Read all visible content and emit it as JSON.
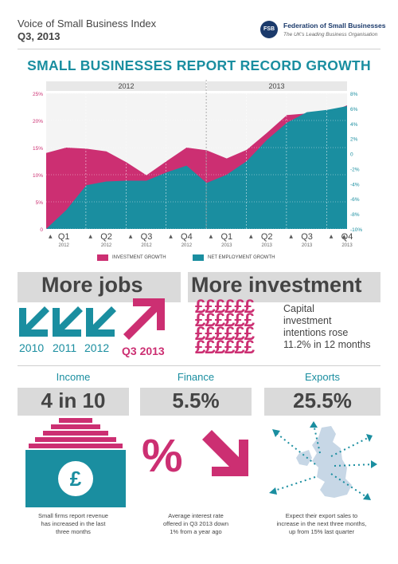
{
  "header": {
    "title": "Voice of Small Business Index",
    "quarter": "Q3, 2013",
    "logo_initials": "FSB",
    "org_name": "Federation of Small Businesses",
    "org_tagline": "The UK's Leading Business Organisation"
  },
  "main_title": "SMALL BUSINESSES REPORT RECORD GROWTH",
  "colors": {
    "pink": "#cc2f72",
    "teal": "#1a8ea0",
    "grey": "#dadada",
    "text": "#444444"
  },
  "chart_data": {
    "type": "area",
    "year_labels": [
      "2012",
      "2013"
    ],
    "categories": [
      {
        "q": "Q1",
        "year": "2012"
      },
      {
        "q": "Q2",
        "year": "2012"
      },
      {
        "q": "Q3",
        "year": "2012"
      },
      {
        "q": "Q4",
        "year": "2012"
      },
      {
        "q": "Q1",
        "year": "2013"
      },
      {
        "q": "Q2",
        "year": "2013"
      },
      {
        "q": "Q3",
        "year": "2013"
      },
      {
        "q": "Q4",
        "year": "2013"
      }
    ],
    "x": [
      0,
      0.5,
      1,
      1.5,
      2,
      2.5,
      3,
      3.5,
      4,
      4.5,
      5,
      5.5,
      6,
      6.5,
      7,
      7.5
    ],
    "series": [
      {
        "name": "INVESTMENT GROWTH",
        "axis": "left",
        "color": "#cc2f72",
        "values": [
          14.0,
          15.0,
          14.8,
          14.3,
          12.3,
          9.9,
          12.5,
          15.0,
          14.5,
          13.0,
          14.6,
          17.7,
          21.0,
          21.3,
          21.3,
          22.8
        ]
      },
      {
        "name": "NET EMPLOYMENT GROWTH",
        "axis": "right",
        "color": "#1a8ea0",
        "values": [
          -10.0,
          -7.5,
          -4.2,
          -3.7,
          -3.6,
          -3.6,
          -2.5,
          -1.6,
          -3.9,
          -2.8,
          -1.0,
          1.8,
          4.1,
          5.5,
          5.8,
          6.3
        ]
      }
    ],
    "y_left": {
      "min": 0,
      "max": 25,
      "ticks": [
        "0",
        "5%",
        "10%",
        "15%",
        "20%",
        "25%"
      ]
    },
    "y_right": {
      "min": -10,
      "max": 8,
      "ticks": [
        "-10%",
        "-8%",
        "-6%",
        "-4%",
        "-2%",
        "0",
        "2%",
        "4%",
        "6%",
        "8%"
      ]
    },
    "grid": true,
    "legend": [
      "INVESTMENT GROWTH",
      "NET EMPLOYMENT GROWTH"
    ]
  },
  "jobs": {
    "heading": "More jobs",
    "years": [
      "2010",
      "2011",
      "2012"
    ],
    "highlight": "Q3 2013"
  },
  "investment": {
    "heading": "More investment",
    "pound_row": "££££££",
    "caption_lines": [
      "Capital",
      "investment",
      "intentions rose",
      "11.2% in 12 months"
    ]
  },
  "stats": [
    {
      "label": "Income",
      "value": "4 in 10",
      "icon": "pound-coin-stack-icon",
      "desc_lines": [
        "Small firms report revenue",
        "has increased in the last",
        "three months"
      ]
    },
    {
      "label": "Finance",
      "value": "5.5%",
      "icon": "percent-down-arrow-icon",
      "desc_lines": [
        "Average interest rate",
        "offered in Q3 2013 down",
        "1% from a year ago"
      ]
    },
    {
      "label": "Exports",
      "value": "25.5%",
      "icon": "uk-export-map-icon",
      "desc_lines": [
        "Expect their export sales to",
        "increase in the next three months,",
        "up from 15% last quarter"
      ]
    }
  ]
}
